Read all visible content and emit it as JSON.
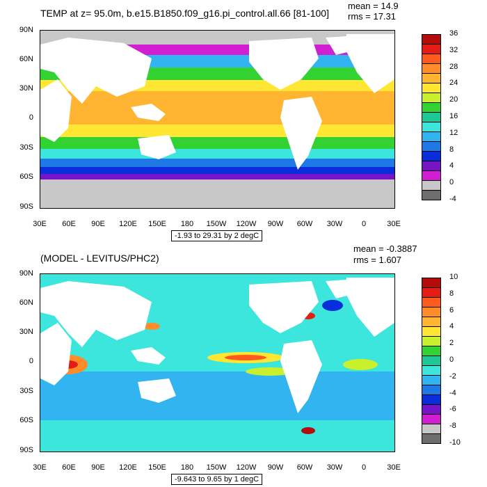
{
  "top": {
    "title": "TEMP at z=  95.0m, b.e15.B1850.f09_g16.pi_control.all.66 [81-100]",
    "mean": "mean = 14.9",
    "rms": "rms = 17.31",
    "range": "-1.93 to 29.31 by 2 degC",
    "y_ticks": [
      "90N",
      "60N",
      "30N",
      "0",
      "30S",
      "60S",
      "90S"
    ],
    "x_ticks": [
      "30E",
      "60E",
      "90E",
      "120E",
      "150E",
      "180",
      "150W",
      "120W",
      "90W",
      "60W",
      "30W",
      "0",
      "30E"
    ],
    "colorbar_labels": [
      "36",
      "32",
      "28",
      "24",
      "20",
      "16",
      "12",
      "8",
      "4",
      "0",
      "-4"
    ],
    "colorbar_colors": [
      "#b40b0b",
      "#e41c14",
      "#ff5a1e",
      "#ff8c28",
      "#ffb432",
      "#ffe632",
      "#c8f02d",
      "#32d232",
      "#1ec896",
      "#3ce6dc",
      "#32b4f0",
      "#1e78e6",
      "#0a2ddc",
      "#7814c8",
      "#d21ed2",
      "#c8c8c8",
      "#6e6e6e"
    ]
  },
  "bottom": {
    "title": "(MODEL - LEVITUS/PHC2)",
    "mean": "mean = -0.3887",
    "rms": "rms = 1.607",
    "range": "-9.643 to 9.65 by 1 degC",
    "y_ticks": [
      "90N",
      "60N",
      "30N",
      "0",
      "30S",
      "60S",
      "90S"
    ],
    "x_ticks": [
      "30E",
      "60E",
      "90E",
      "120E",
      "150E",
      "180",
      "150W",
      "120W",
      "90W",
      "60W",
      "30W",
      "0",
      "30E"
    ],
    "colorbar_labels": [
      "10",
      "8",
      "6",
      "4",
      "2",
      "0",
      "-2",
      "-4",
      "-6",
      "-8",
      "-10"
    ],
    "colorbar_colors": [
      "#b40b0b",
      "#e41c14",
      "#ff5a1e",
      "#ff8c28",
      "#ffb432",
      "#ffe632",
      "#c8f02d",
      "#32d232",
      "#1ec896",
      "#3ce6dc",
      "#32b4f0",
      "#1e78e6",
      "#0a2ddc",
      "#7814c8",
      "#d21ed2",
      "#c8c8c8",
      "#6e6e6e"
    ]
  }
}
